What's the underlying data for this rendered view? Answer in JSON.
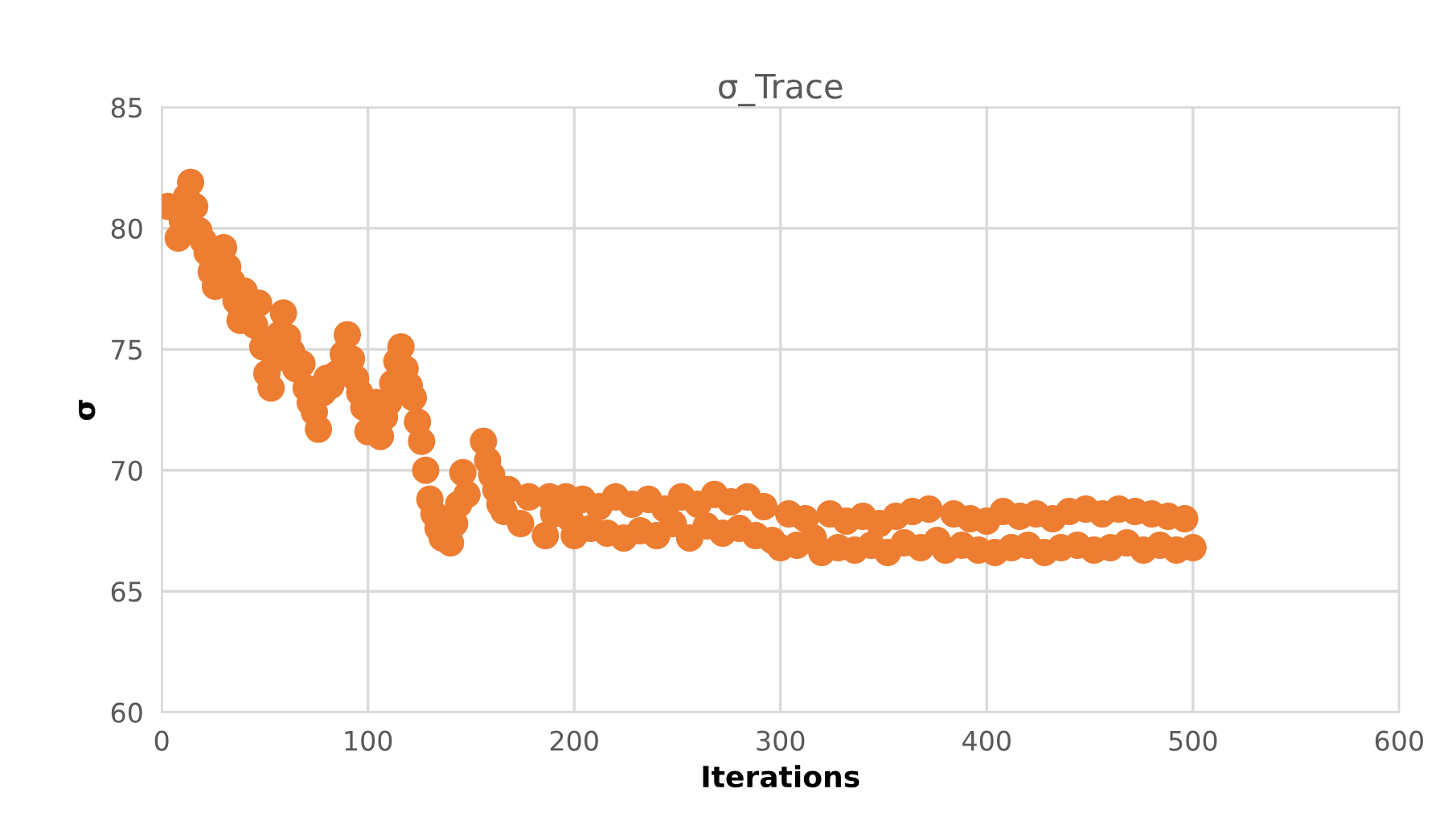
{
  "chart_data": {
    "type": "scatter",
    "title": "σ_Trace",
    "xlabel": "Iterations",
    "ylabel": "σ",
    "xlim": [
      0,
      600
    ],
    "xticks": [
      0,
      100,
      200,
      300,
      400,
      500,
      600
    ],
    "ylim": [
      60,
      85
    ],
    "yticks": [
      60,
      65,
      70,
      75,
      80,
      85
    ],
    "grid": true,
    "marker": "circle",
    "series": [
      {
        "color": "#ed7d31",
        "x": [
          3,
          8,
          10,
          12,
          14,
          16,
          18,
          20,
          22,
          24,
          26,
          30,
          32,
          34,
          36,
          38,
          40,
          45,
          47,
          49,
          51,
          53,
          55,
          57,
          59,
          61,
          63,
          65,
          68,
          70,
          72,
          74,
          76,
          78,
          80,
          82,
          85,
          88,
          90,
          92,
          94,
          96,
          98,
          100,
          104,
          106,
          108,
          110,
          112,
          114,
          116,
          118,
          120,
          122,
          124,
          126,
          128,
          130,
          132,
          134,
          136,
          140,
          142,
          144,
          146,
          148,
          156,
          158,
          160,
          162,
          164,
          166,
          168,
          174,
          178,
          186,
          188,
          190,
          196,
          198,
          200,
          204,
          208,
          212,
          216,
          220,
          224,
          228,
          232,
          236,
          240,
          244,
          248,
          252,
          256,
          260,
          264,
          268,
          272,
          276,
          280,
          284,
          288,
          292,
          296,
          300,
          304,
          308,
          312,
          316,
          320,
          324,
          328,
          332,
          336,
          340,
          344,
          348,
          352,
          356,
          360,
          364,
          368,
          372,
          376,
          380,
          384,
          388,
          392,
          396,
          400,
          404,
          408,
          412,
          416,
          420,
          424,
          428,
          432,
          436,
          440,
          444,
          448,
          452,
          456,
          460,
          464,
          468,
          472,
          476,
          480,
          484,
          488,
          492,
          496,
          500
        ],
        "values": [
          80.9,
          79.6,
          80.3,
          81.3,
          81.9,
          80.9,
          79.9,
          79.5,
          79.0,
          78.2,
          77.6,
          79.2,
          78.4,
          77.8,
          77.0,
          76.2,
          77.4,
          76.0,
          76.9,
          75.1,
          74.0,
          73.4,
          74.6,
          75.6,
          76.5,
          75.5,
          74.9,
          74.2,
          74.4,
          73.4,
          72.8,
          72.4,
          71.7,
          73.2,
          73.8,
          73.5,
          74.0,
          74.8,
          75.6,
          74.6,
          73.8,
          73.2,
          72.6,
          71.6,
          72.8,
          71.4,
          72.2,
          72.8,
          73.6,
          74.5,
          75.1,
          74.2,
          73.5,
          73.0,
          72.0,
          71.2,
          70.0,
          68.8,
          68.2,
          67.6,
          67.2,
          67.0,
          67.8,
          68.6,
          69.9,
          69.0,
          71.2,
          70.4,
          69.8,
          69.2,
          68.6,
          68.3,
          69.2,
          67.8,
          68.9,
          67.3,
          68.9,
          68.2,
          68.9,
          68.0,
          67.3,
          68.8,
          67.6,
          68.5,
          67.4,
          68.9,
          67.2,
          68.6,
          67.5,
          68.8,
          67.3,
          68.4,
          67.8,
          68.9,
          67.2,
          68.6,
          67.7,
          69.0,
          67.4,
          68.7,
          67.6,
          68.9,
          67.3,
          68.5,
          67.1,
          66.8,
          68.2,
          66.9,
          68.0,
          67.2,
          66.6,
          68.2,
          66.8,
          67.9,
          66.7,
          68.1,
          66.9,
          67.8,
          66.6,
          68.1,
          67.0,
          68.3,
          66.8,
          68.4,
          67.1,
          66.7,
          68.2,
          66.9,
          68.0,
          66.7,
          67.9,
          66.6,
          68.3,
          66.8,
          68.1,
          66.9,
          68.2,
          66.6,
          68.0,
          66.8,
          68.3,
          66.9,
          68.4,
          66.7,
          68.2,
          66.8,
          68.4,
          67.0,
          68.3,
          66.7,
          68.2,
          66.9,
          68.1,
          66.7,
          68.0,
          66.8
        ]
      }
    ]
  }
}
